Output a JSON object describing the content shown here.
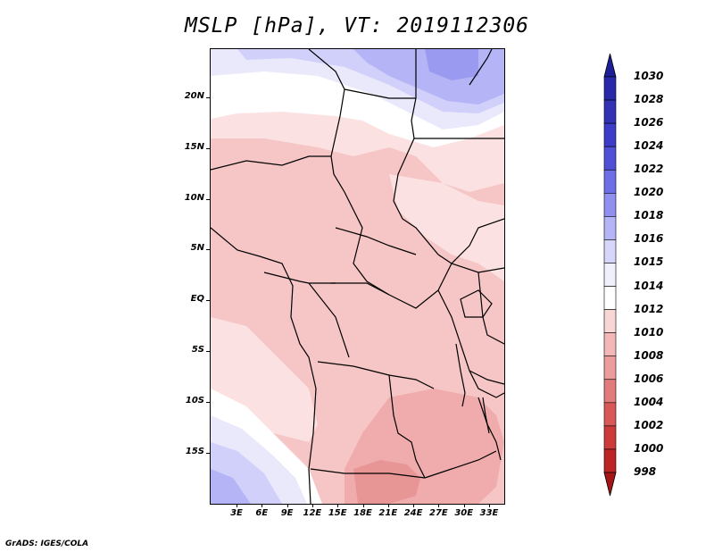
{
  "title": "MSLP [hPa], VT: 2019112306",
  "credit": "GrADS: IGES/COLA",
  "lat_labels": [
    "20N",
    "15N",
    "10N",
    "5N",
    "EQ",
    "5S",
    "10S",
    "15S"
  ],
  "lon_labels": [
    "3E",
    "6E",
    "9E",
    "12E",
    "15E",
    "18E",
    "21E",
    "24E",
    "27E",
    "30E",
    "33E"
  ],
  "colorbar": {
    "levels": [
      "1030",
      "1028",
      "1026",
      "1024",
      "1022",
      "1020",
      "1018",
      "1016",
      "1015",
      "1014",
      "1012",
      "1010",
      "1008",
      "1006",
      "1004",
      "1002",
      "1000",
      "998"
    ],
    "colors": [
      "#1e1e96",
      "#2828a8",
      "#3232b4",
      "#3c3cc8",
      "#5050d7",
      "#6e6ee6",
      "#9090f0",
      "#b4b4f6",
      "#d6d6fa",
      "#f0f0fc",
      "#ffffff",
      "#f9d6d6",
      "#f3b7b7",
      "#ec9c9c",
      "#e27b7b",
      "#d85858",
      "#cd3a3a",
      "#bd2424",
      "#a41515"
    ]
  },
  "map_colors": {
    "hi_1020": "#9a9af0",
    "hi_1018": "#b4b4f6",
    "hi_1016": "#d0d0fa",
    "hi_1015": "#e9e9fb",
    "mid_1014": "#ffffff",
    "lo_1012": "#fbe1e1",
    "lo_1010": "#f6c5c5",
    "lo_1008": "#f0acac",
    "lo_1006": "#e79595"
  }
}
